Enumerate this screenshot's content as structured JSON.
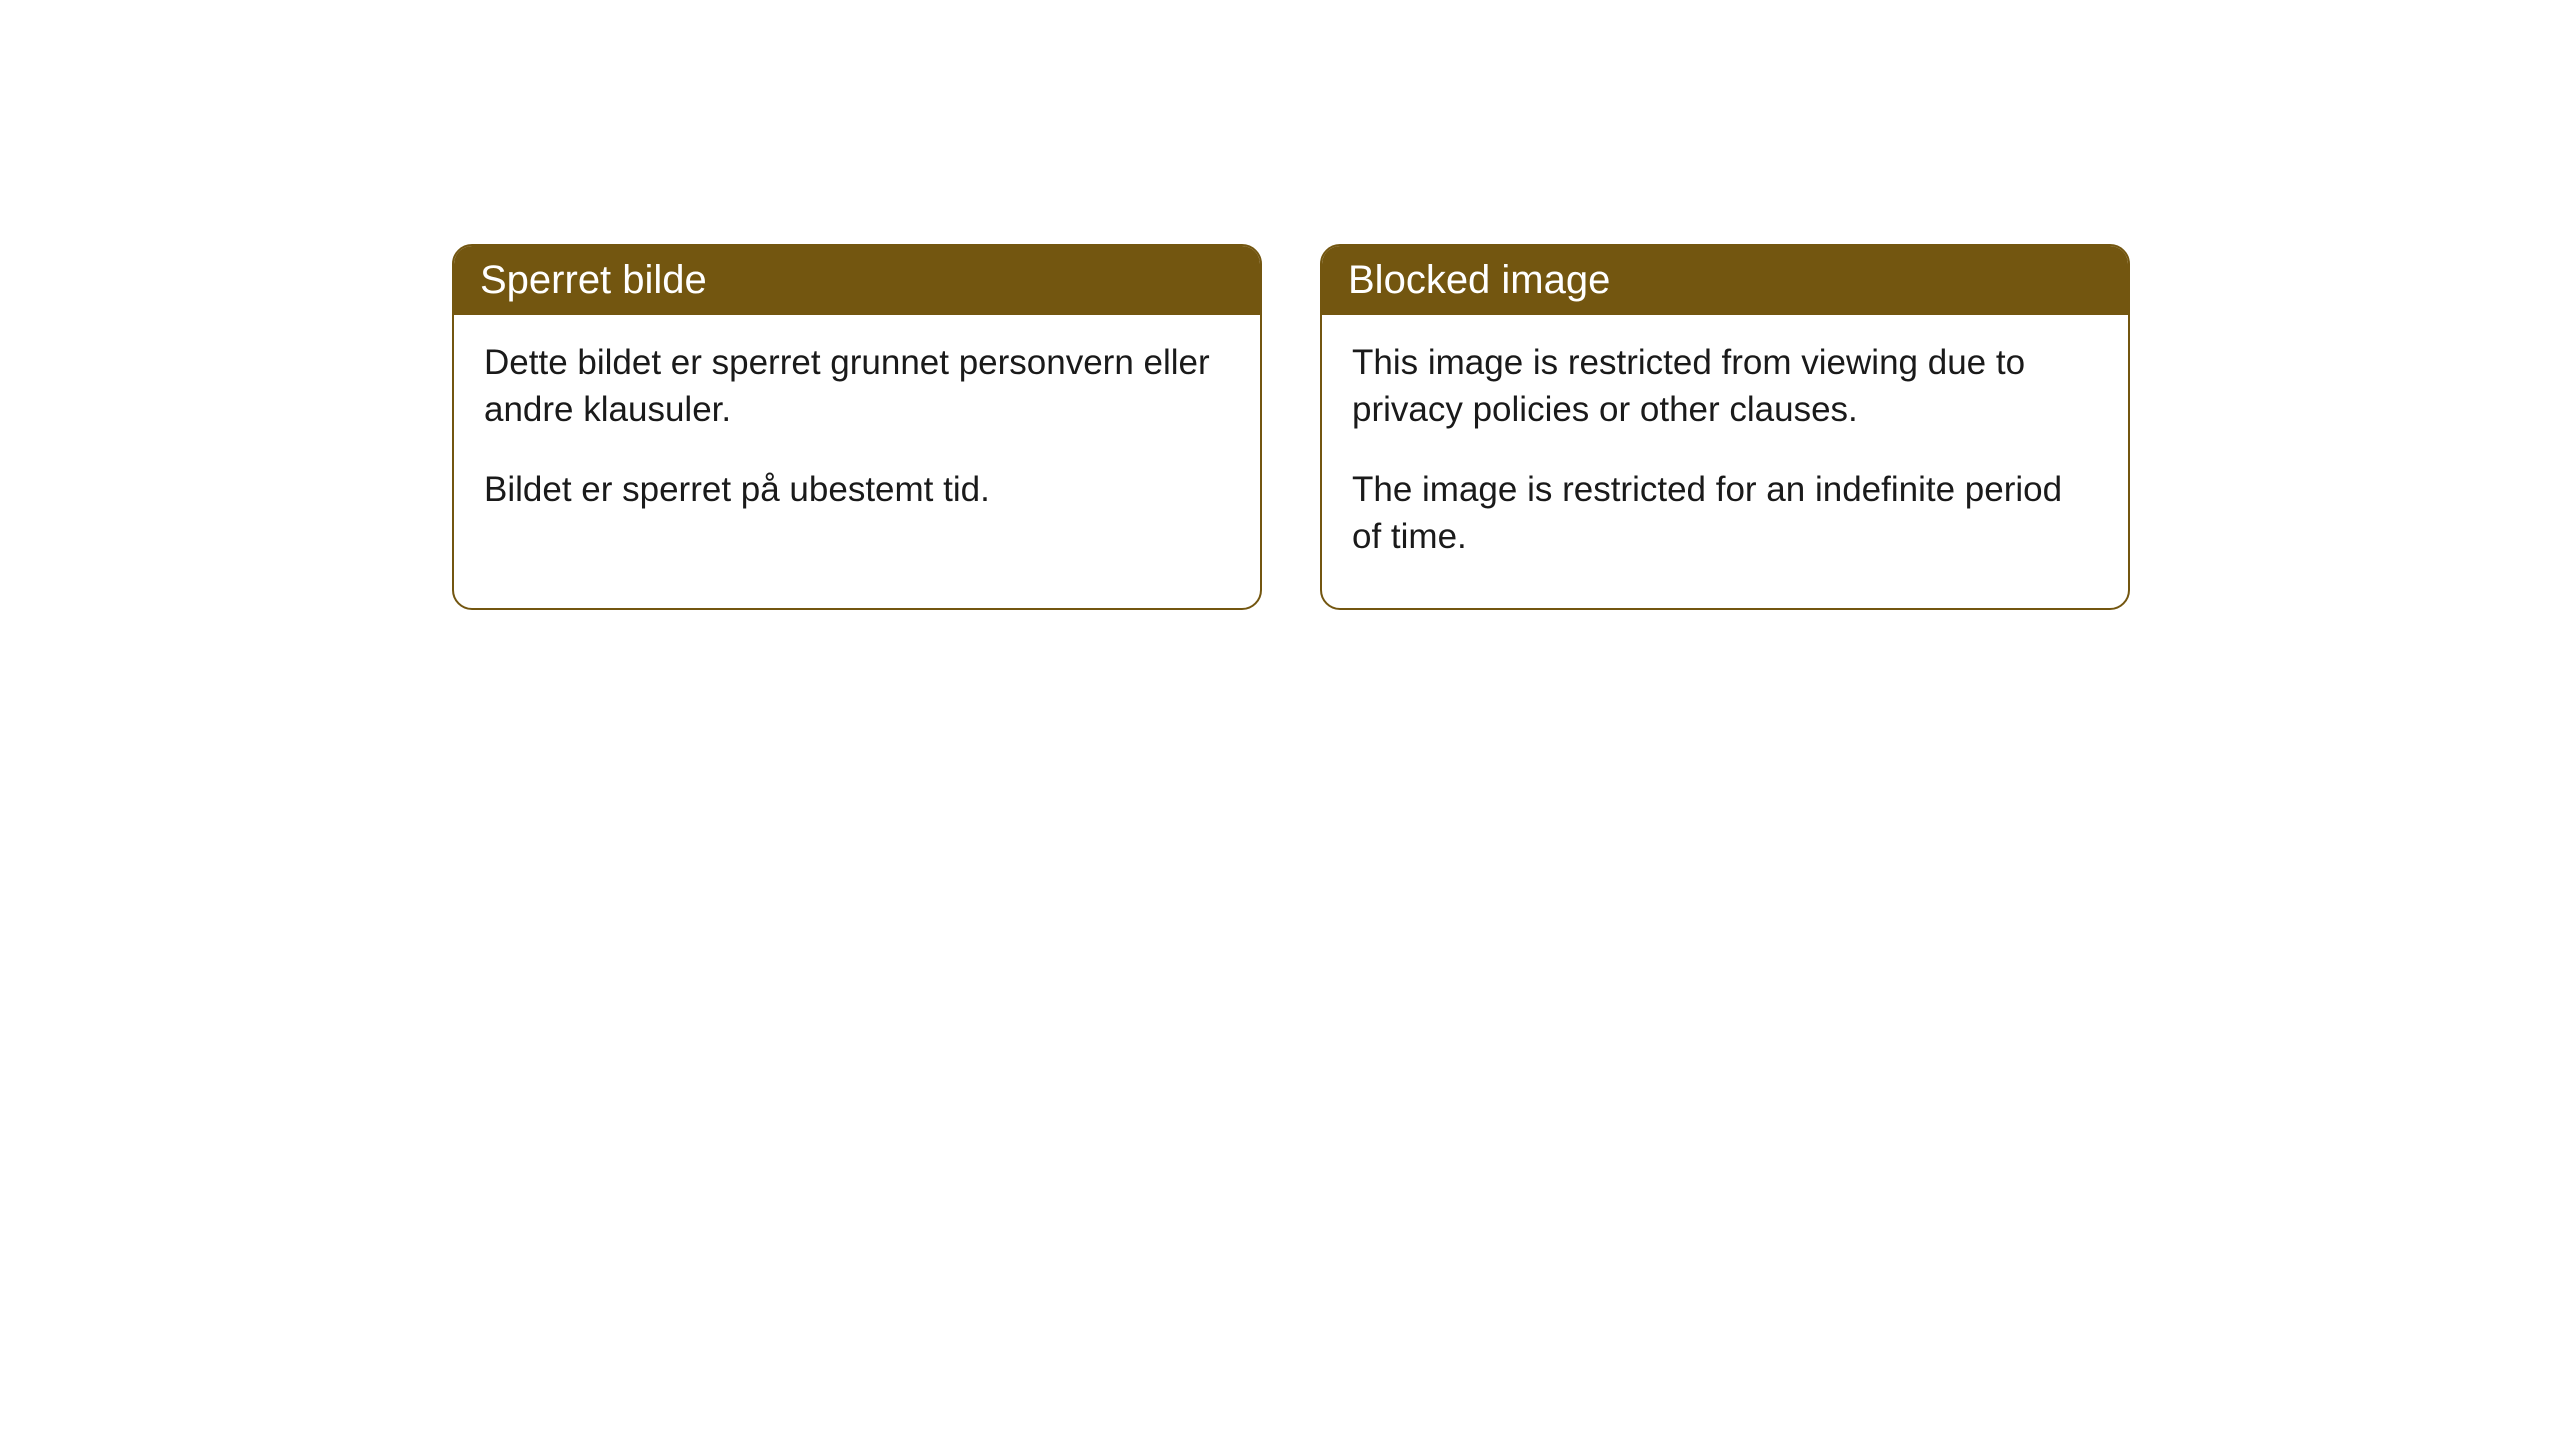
{
  "cards": [
    {
      "title": "Sperret bilde",
      "paragraph1": "Dette bildet er sperret grunnet personvern eller andre klausuler.",
      "paragraph2": "Bildet er sperret på ubestemt tid."
    },
    {
      "title": "Blocked image",
      "paragraph1": "This image is restricted from viewing due to privacy policies or other clauses.",
      "paragraph2": "The image is restricted for an indefinite period of time."
    }
  ],
  "styling": {
    "header_background": "#735610",
    "header_text_color": "#ffffff",
    "border_color": "#735610",
    "body_background": "#ffffff",
    "body_text_color": "#1a1a1a",
    "border_radius": 20,
    "header_font_size": 40,
    "body_font_size": 35
  }
}
